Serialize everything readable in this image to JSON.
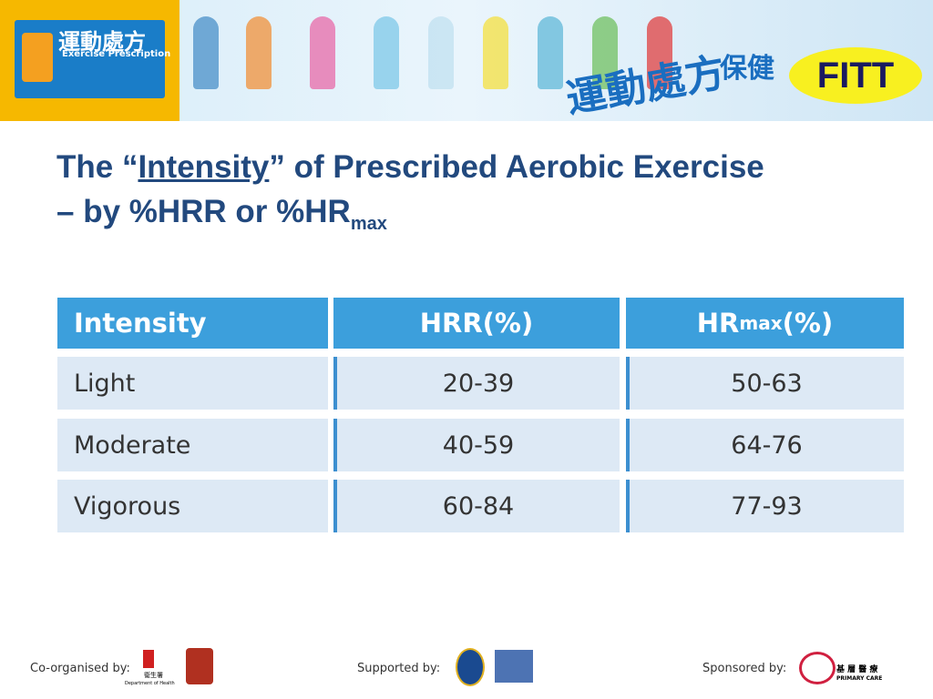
{
  "header": {
    "logo_title": "運動處方",
    "logo_subtitle": "Exercise Prescription",
    "banner_text_1": "運動處方",
    "banner_text_2": "保健",
    "badge": "FITT"
  },
  "title": {
    "line1_prefix": "The “",
    "line1_underlined": "Intensity",
    "line1_suffix": "” of Prescribed Aerobic Exercise",
    "line2": "– by %HRR or %HR",
    "line2_subscript": "max"
  },
  "table": {
    "header": [
      "Intensity",
      "HRR(%)",
      {
        "main": "HR",
        "subscript": "max",
        "suffix": "(%)"
      }
    ],
    "rows": [
      [
        "Light",
        "20-39",
        "50-63"
      ],
      [
        "Moderate",
        "40-59",
        "64-76"
      ],
      [
        "Vigorous",
        "60-84",
        "77-93"
      ]
    ]
  },
  "footer": {
    "co_organised": "Co-organised by:",
    "dh_chinese": "衞生署",
    "dh_english": "Department of Health",
    "supported": "Supported by:",
    "sponsored": "Sponsored by:",
    "pc_chinese": "基 層 醫 療",
    "pc_english": "PRIMARY CARE"
  }
}
